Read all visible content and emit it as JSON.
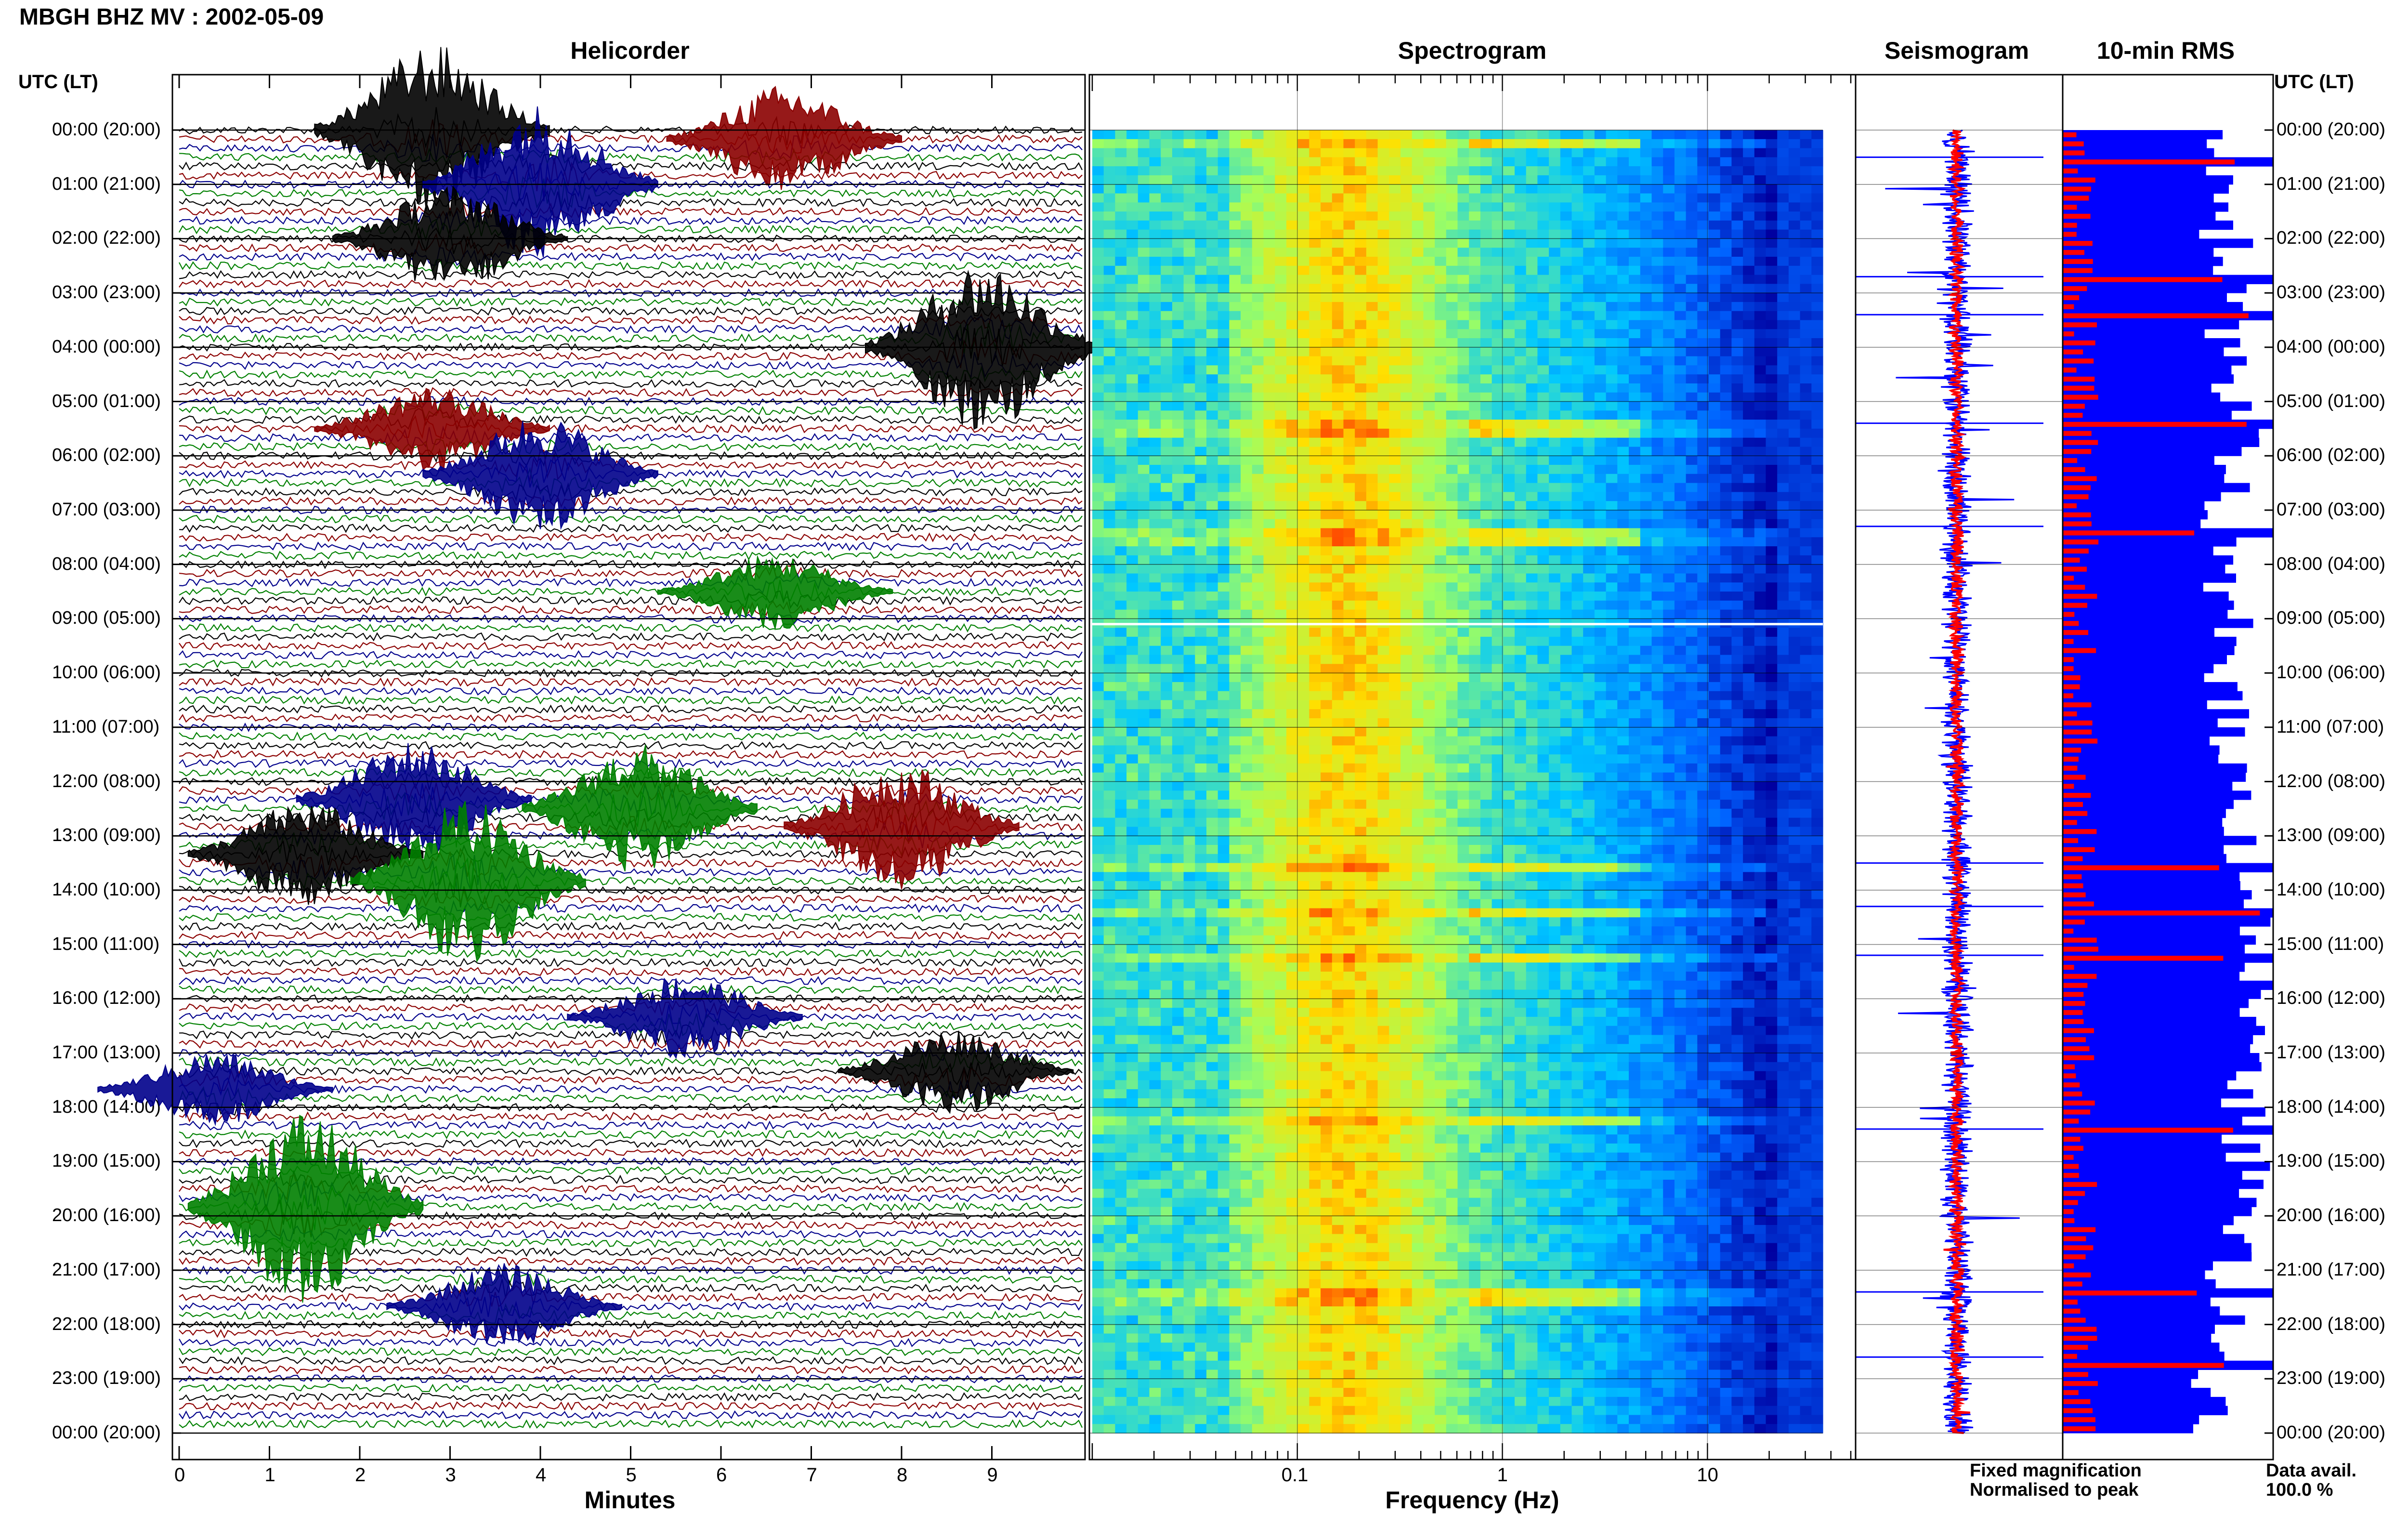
{
  "header": {
    "title": "MBGH BHZ MV : 2002-05-09",
    "utc_left": "UTC (LT)",
    "utc_right": "UTC (LT)"
  },
  "panels": {
    "helicorder": "Helicorder",
    "spectrogram": "Spectrogram",
    "seismogram": "Seismogram",
    "rms": "10-min RMS"
  },
  "time_labels": [
    "00:00 (20:00)",
    "01:00 (21:00)",
    "02:00 (22:00)",
    "03:00 (23:00)",
    "04:00 (00:00)",
    "05:00 (01:00)",
    "06:00 (02:00)",
    "07:00 (03:00)",
    "08:00 (04:00)",
    "09:00 (05:00)",
    "10:00 (06:00)",
    "11:00 (07:00)",
    "12:00 (08:00)",
    "13:00 (09:00)",
    "14:00 (10:00)",
    "15:00 (11:00)",
    "16:00 (12:00)",
    "17:00 (13:00)",
    "18:00 (14:00)",
    "19:00 (15:00)",
    "20:00 (16:00)",
    "21:00 (17:00)",
    "22:00 (18:00)",
    "23:00 (19:00)",
    "00:00 (20:00)"
  ],
  "legend": {
    "fixed": "Fixed magnification",
    "normalised": "Normalised to peak",
    "data_avail_label": "Data avail.",
    "data_avail_value": "100.0 %"
  },
  "colors": {
    "fixed": "#0000ff",
    "normalised": "#ff0000",
    "trace_cycle": [
      "#000000",
      "#8b0000",
      "#00008b",
      "#008000"
    ]
  },
  "chart_data": [
    {
      "type": "line",
      "name": "helicorder",
      "xlabel": "Minutes",
      "x_ticks": [
        "0",
        "1",
        "2",
        "3",
        "4",
        "5",
        "6",
        "7",
        "8",
        "9"
      ],
      "xlim": [
        0,
        10
      ],
      "rows": 144,
      "row_minutes": 10,
      "events": [
        {
          "hour": 0.0,
          "minute": 2.8,
          "amp": 3.2,
          "row_offset": 3
        },
        {
          "hour": 0.1,
          "minute": 6.7,
          "amp": 2.0,
          "row_offset": 0
        },
        {
          "hour": 1.0,
          "minute": 4.0,
          "amp": 3.0,
          "row_offset": 4
        },
        {
          "hour": 2.0,
          "minute": 3.0,
          "amp": 2.0,
          "row_offset": 0
        },
        {
          "hour": 4.0,
          "minute": 8.9,
          "amp": 3.2,
          "row_offset": 4
        },
        {
          "hour": 5.5,
          "minute": 2.8,
          "amp": 1.6,
          "row_offset": 0
        },
        {
          "hour": 6.3,
          "minute": 4.0,
          "amp": 2.2,
          "row_offset": 0
        },
        {
          "hour": 8.5,
          "minute": 6.6,
          "amp": 1.4,
          "row_offset": 0
        },
        {
          "hour": 12.4,
          "minute": 2.6,
          "amp": 2.2,
          "row_offset": 0
        },
        {
          "hour": 12.5,
          "minute": 5.1,
          "amp": 2.4,
          "row_offset": 0
        },
        {
          "hour": 12.8,
          "minute": 8.0,
          "amp": 2.4,
          "row_offset": 0
        },
        {
          "hour": 13.4,
          "minute": 1.4,
          "amp": 2.0,
          "row_offset": 0
        },
        {
          "hour": 13.8,
          "minute": 3.2,
          "amp": 3.0,
          "row_offset": 0
        },
        {
          "hour": 16.4,
          "minute": 5.6,
          "amp": 1.6,
          "row_offset": 0
        },
        {
          "hour": 17.4,
          "minute": 8.6,
          "amp": 1.6,
          "row_offset": 0
        },
        {
          "hour": 17.7,
          "minute": 0.4,
          "amp": 1.4,
          "row_offset": 0
        },
        {
          "hour": 19.8,
          "minute": 1.4,
          "amp": 3.6,
          "row_offset": 0
        },
        {
          "hour": 21.6,
          "minute": 3.6,
          "amp": 1.6,
          "row_offset": 0
        }
      ]
    },
    {
      "type": "heatmap",
      "name": "spectrogram",
      "xlabel": "Frequency (Hz)",
      "x_scale": "log",
      "x_ticks": [
        "0.1",
        "1",
        "10"
      ],
      "xlim": [
        0.01,
        50
      ],
      "colormap": [
        "#0000a0",
        "#0060ff",
        "#00c8ff",
        "#a0ff60",
        "#ffe000",
        "#ff2000"
      ],
      "peak_band_hz": [
        0.2,
        0.9
      ],
      "bright_hours": [
        0.2,
        5.4,
        7.4,
        13.5,
        14.3,
        15.2,
        18.2,
        21.4
      ]
    },
    {
      "type": "line",
      "name": "seismogram",
      "series": [
        {
          "name": "Fixed magnification",
          "color": "#0000ff"
        },
        {
          "name": "Normalised to peak",
          "color": "#ff0000"
        }
      ]
    },
    {
      "type": "bar",
      "name": "10-min RMS",
      "orientation": "horizontal",
      "series": [
        {
          "name": "Fixed magnification",
          "color": "#0000ff"
        },
        {
          "name": "Normalised to peak",
          "color": "#ff0000"
        }
      ],
      "hourly_level": [
        0.78,
        0.75,
        0.82,
        0.76,
        0.8,
        0.83,
        0.78,
        0.72,
        0.74,
        0.8,
        0.78,
        0.8,
        0.85,
        0.86,
        0.9,
        0.92,
        0.88,
        0.84,
        0.86,
        0.88,
        0.8,
        0.76,
        0.74,
        0.72
      ],
      "spike_hours": [
        0.5,
        2.7,
        3.4,
        5.4,
        7.3,
        13.5,
        14.3,
        15.2,
        18.4,
        21.4,
        22.6
      ],
      "xlim": [
        0,
        1
      ]
    }
  ]
}
